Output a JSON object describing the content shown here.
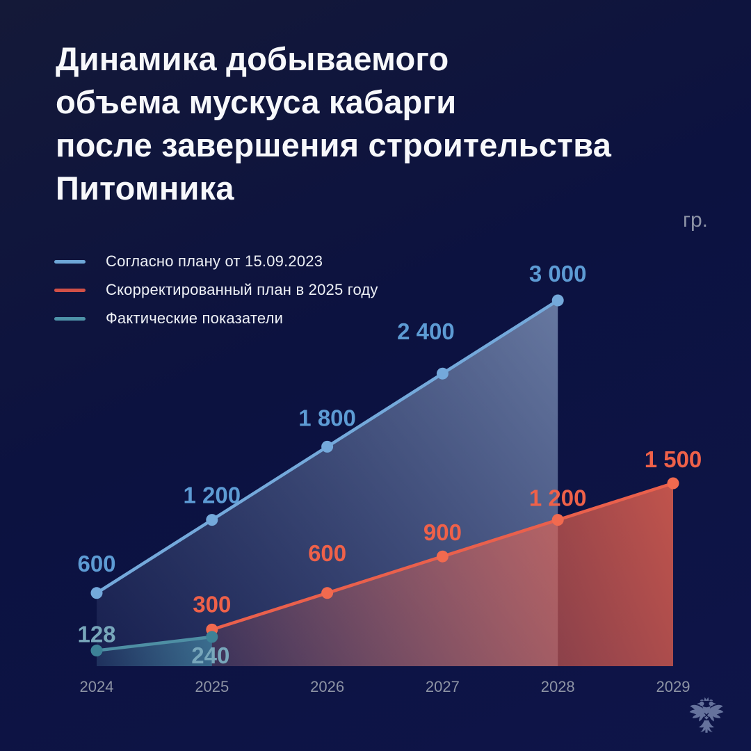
{
  "title": {
    "lines": [
      "Динамика добываемого",
      "объема мускуса кабарги",
      "после завершения строительства",
      "Питомника"
    ]
  },
  "unit_label": "гр.",
  "footer": {
    "logo_icon": "double-headed-eagle-emblem"
  },
  "chart_data": {
    "type": "area",
    "title": "Динамика добываемого объема мускуса кабарги после завершения строительства Питомника",
    "unit": "гр.",
    "x_categories": [
      "2024",
      "2025",
      "2026",
      "2027",
      "2028",
      "2029"
    ],
    "x_values": [
      2024,
      2025,
      2026,
      2027,
      2028,
      2029
    ],
    "ylim": [
      0,
      3000
    ],
    "grid": false,
    "legend_position": "top-left",
    "axis_label_color": "#8d93a4",
    "background": "#0d1240",
    "series": [
      {
        "name": "Согласно плану от 15.09.2023",
        "color": "#74a9db",
        "dot_color": "#74a9db",
        "label_color": "#5d9bd4",
        "legend_color": "#6ea7d8",
        "fill_from": "rgba(159,183,219,0.62)",
        "fill_to": "rgba(120,145,190,0.10)",
        "x": [
          2024,
          2025,
          2026,
          2027,
          2028
        ],
        "values": [
          600,
          1200,
          1800,
          2400,
          3000
        ],
        "labels": [
          "600",
          "1 200",
          "1 800",
          "2 400",
          "3 000"
        ],
        "label_offsets": [
          [
            0,
            -31
          ],
          [
            0,
            -24
          ],
          [
            0,
            -30
          ],
          [
            -24,
            -49
          ],
          [
            0,
            -27
          ]
        ]
      },
      {
        "name": "Скорректированный план в 2025 году",
        "color": "#ea604c",
        "dot_color": "#f16a4f",
        "label_color": "#ef6149",
        "legend_color": "#d15047",
        "fill_from": "rgba(238,100,78,0.80)",
        "fill_to": "rgba(238,100,78,0.12)",
        "x": [
          2025,
          2026,
          2027,
          2028,
          2029
        ],
        "values": [
          300,
          600,
          900,
          1200,
          1500
        ],
        "labels": [
          "300",
          "600",
          "900",
          "1 200",
          "1 500"
        ],
        "label_offsets": [
          [
            0,
            -25
          ],
          [
            0,
            -46
          ],
          [
            0,
            -23
          ],
          [
            0,
            -20
          ],
          [
            0,
            -23
          ]
        ]
      },
      {
        "name": "Фактические показатели",
        "color": "#4e8fa4",
        "dot_color": "#3d8297",
        "label_color": "#78a7bb",
        "legend_color": "#4e93a9",
        "fill_from": "rgba(79,163,184,0.55)",
        "fill_to": "rgba(79,163,184,0.12)",
        "x": [
          2024,
          2025
        ],
        "values": [
          128,
          240
        ],
        "labels": [
          "128",
          "240"
        ],
        "label_offsets": [
          [
            0,
            -12
          ],
          [
            -2,
            38
          ]
        ]
      }
    ]
  }
}
